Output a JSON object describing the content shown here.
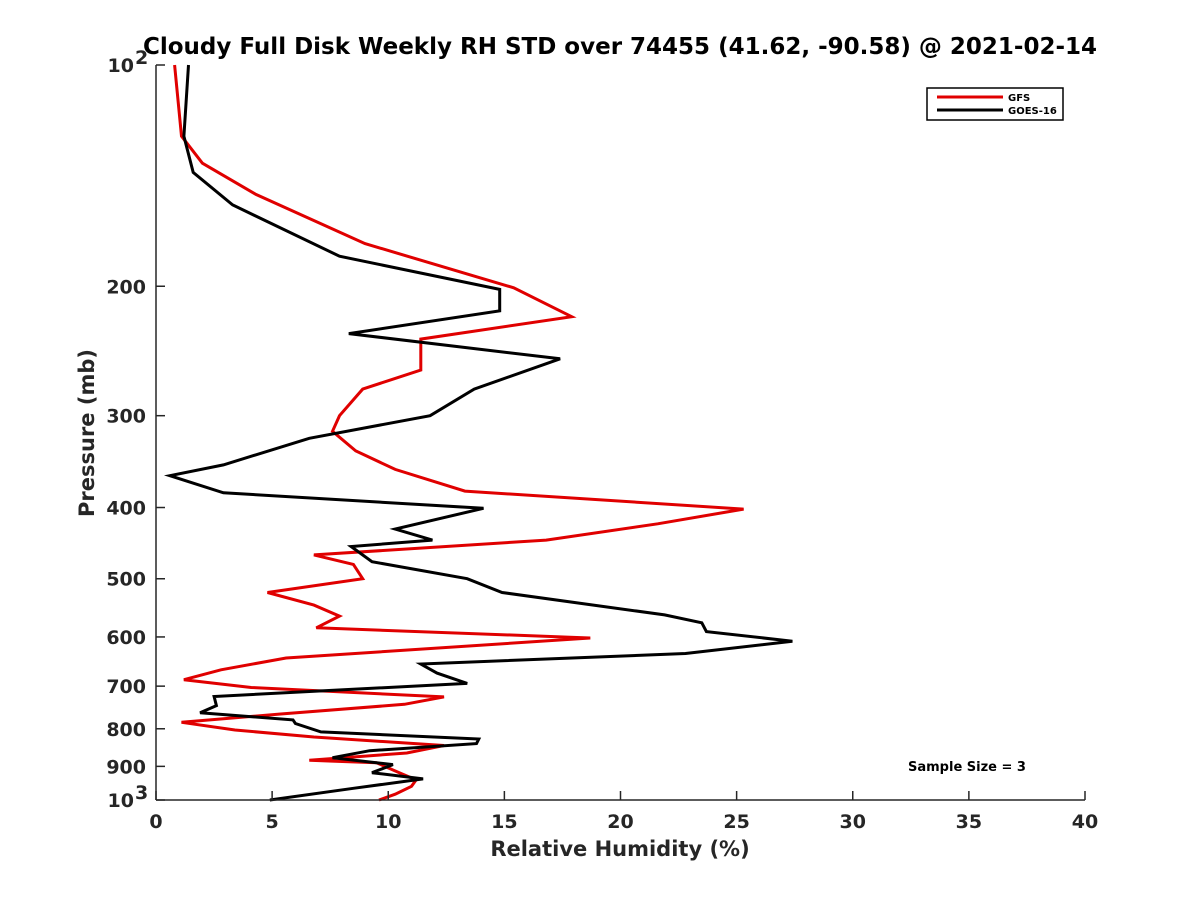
{
  "chart_data": {
    "type": "line",
    "title": "Cloudy Full Disk Weekly RH STD over 74455 (41.62, -90.58) @ 2021-02-14",
    "xlabel": "Relative Humidity (%)",
    "ylabel": "Pressure (mb)",
    "xlim": [
      0,
      40
    ],
    "ylim": [
      100,
      1000
    ],
    "y_scale": "log",
    "y_reversed": true,
    "grid": false,
    "legend_position": "top-right",
    "x_ticks": [
      "0",
      "5",
      "10",
      "15",
      "20",
      "25",
      "30",
      "35",
      "40"
    ],
    "y_ticks": [
      {
        "value": 100,
        "base": "10",
        "exp": "2"
      },
      {
        "value": 200,
        "label": "200"
      },
      {
        "value": 300,
        "label": "300"
      },
      {
        "value": 400,
        "label": "400"
      },
      {
        "value": 500,
        "label": "500"
      },
      {
        "value": 600,
        "label": "600"
      },
      {
        "value": 700,
        "label": "700"
      },
      {
        "value": 800,
        "label": "800"
      },
      {
        "value": 900,
        "label": "900"
      },
      {
        "value": 1000,
        "base": "10",
        "exp": "3"
      }
    ],
    "series": [
      {
        "name": "GFS",
        "color": "#e00000",
        "points": [
          [
            0.8,
            100
          ],
          [
            1.1,
            125
          ],
          [
            2.0,
            136
          ],
          [
            4.3,
            150
          ],
          [
            9.0,
            175
          ],
          [
            15.4,
            201
          ],
          [
            17.9,
            220
          ],
          [
            11.4,
            236
          ],
          [
            11.4,
            260
          ],
          [
            8.9,
            276
          ],
          [
            7.9,
            300
          ],
          [
            7.6,
            315
          ],
          [
            8.6,
            335
          ],
          [
            10.3,
            355
          ],
          [
            13.3,
            380
          ],
          [
            25.3,
            402
          ],
          [
            21.6,
            421
          ],
          [
            16.8,
            443
          ],
          [
            6.8,
            464
          ],
          [
            8.5,
            478
          ],
          [
            8.9,
            500
          ],
          [
            4.8,
            522
          ],
          [
            6.8,
            543
          ],
          [
            7.9,
            562
          ],
          [
            6.9,
            583
          ],
          [
            18.7,
            602
          ],
          [
            5.6,
            641
          ],
          [
            2.8,
            665
          ],
          [
            1.2,
            686
          ],
          [
            4.1,
            703
          ],
          [
            12.4,
            724
          ],
          [
            10.7,
            741
          ],
          [
            5.3,
            764
          ],
          [
            1.1,
            784
          ],
          [
            3.4,
            803
          ],
          [
            6.8,
            821
          ],
          [
            12.4,
            843
          ],
          [
            10.8,
            863
          ],
          [
            6.6,
            883
          ],
          [
            9.5,
            890
          ],
          [
            10.5,
            919
          ],
          [
            11.2,
            939
          ],
          [
            11.0,
            958
          ],
          [
            10.3,
            982
          ],
          [
            9.6,
            1000
          ]
        ]
      },
      {
        "name": "GOES-16",
        "color": "#000000",
        "points": [
          [
            1.4,
            100
          ],
          [
            1.2,
            125
          ],
          [
            1.6,
            140
          ],
          [
            3.3,
            155
          ],
          [
            7.9,
            182
          ],
          [
            14.8,
            202
          ],
          [
            14.8,
            216
          ],
          [
            8.3,
            232
          ],
          [
            17.4,
            251
          ],
          [
            13.7,
            276
          ],
          [
            11.8,
            300
          ],
          [
            6.6,
            322
          ],
          [
            2.9,
            350
          ],
          [
            0.6,
            362
          ],
          [
            2.9,
            382
          ],
          [
            14.1,
            401
          ],
          [
            10.3,
            428
          ],
          [
            11.9,
            443
          ],
          [
            8.4,
            452
          ],
          [
            9.3,
            474
          ],
          [
            13.4,
            500
          ],
          [
            14.9,
            522
          ],
          [
            21.9,
            560
          ],
          [
            23.5,
            574
          ],
          [
            23.7,
            590
          ],
          [
            27.4,
            608
          ],
          [
            22.8,
            632
          ],
          [
            11.4,
            653
          ],
          [
            12.1,
            672
          ],
          [
            13.4,
            694
          ],
          [
            2.5,
            723
          ],
          [
            2.6,
            744
          ],
          [
            1.9,
            761
          ],
          [
            5.9,
            778
          ],
          [
            6.0,
            787
          ],
          [
            7.1,
            808
          ],
          [
            13.9,
            826
          ],
          [
            13.8,
            838
          ],
          [
            9.2,
            857
          ],
          [
            7.6,
            876
          ],
          [
            10.2,
            895
          ],
          [
            9.3,
            918
          ],
          [
            11.5,
            936
          ],
          [
            8.5,
            964
          ],
          [
            4.9,
            1000
          ]
        ]
      }
    ],
    "annotation": "Sample Size = 3"
  }
}
